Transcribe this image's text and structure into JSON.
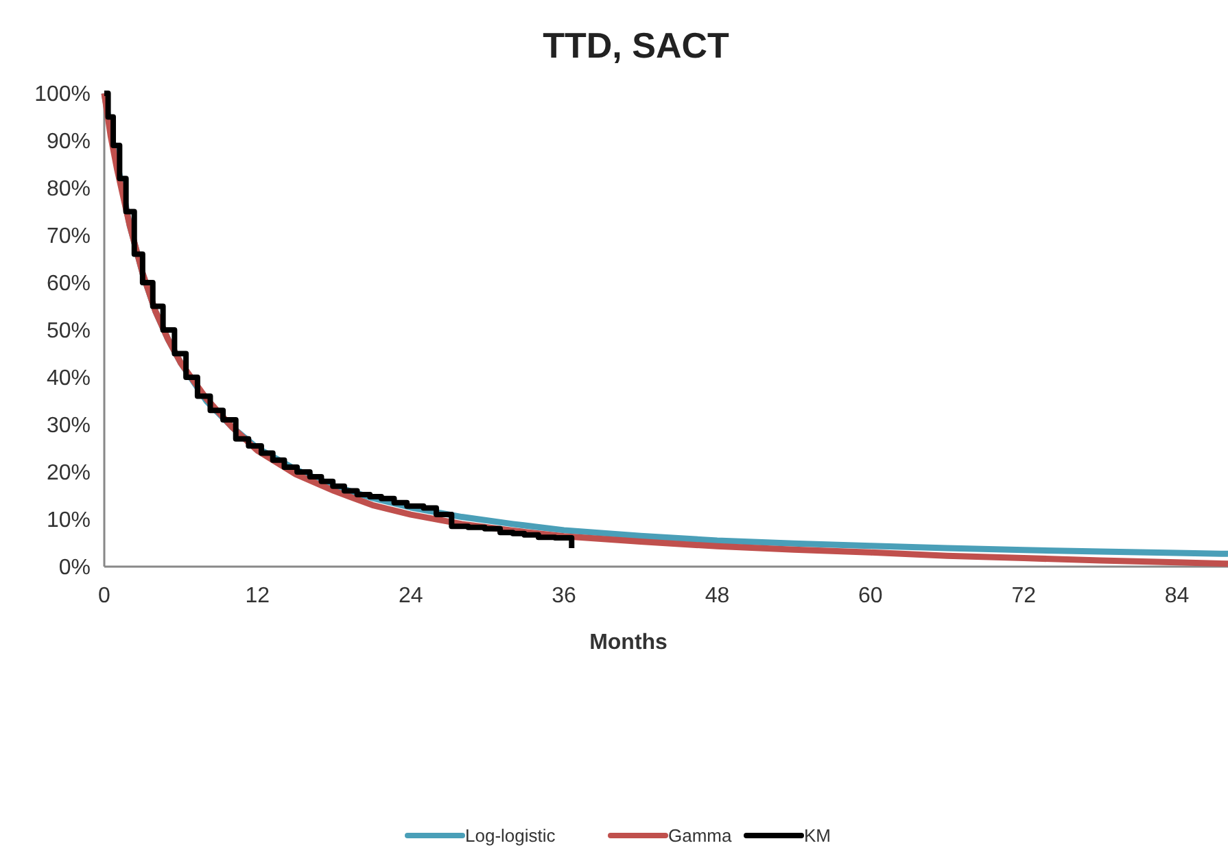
{
  "chart_data": {
    "type": "line",
    "title": "TTD, SACT",
    "xlabel": "Months",
    "xlim": [
      0,
      88
    ],
    "xticks": [
      0,
      12,
      24,
      36,
      48,
      60,
      72,
      84
    ],
    "ylim": [
      0,
      100
    ],
    "yticks": [
      {
        "value": 0,
        "label": "0%"
      },
      {
        "value": 10,
        "label": "10%"
      },
      {
        "value": 20,
        "label": "20%"
      },
      {
        "value": 30,
        "label": "30%"
      },
      {
        "value": 40,
        "label": "40%"
      },
      {
        "value": 50,
        "label": "50%"
      },
      {
        "value": 60,
        "label": "60%"
      },
      {
        "value": 70,
        "label": "70%"
      },
      {
        "value": 80,
        "label": "80%"
      },
      {
        "value": 90,
        "label": "90%"
      },
      {
        "value": 100,
        "label": "100%"
      }
    ],
    "grid": false,
    "legend": "bottom",
    "series": [
      {
        "name": "Log-logistic",
        "color": "#4a9fb8",
        "x": [
          0,
          0.5,
          1,
          2,
          3,
          4,
          5,
          6,
          8,
          10,
          12,
          15,
          18,
          21,
          24,
          28,
          32,
          36,
          42,
          48,
          54,
          60,
          66,
          72,
          78,
          84,
          88
        ],
        "values": [
          100,
          92,
          null,
          72,
          62,
          54,
          48,
          43,
          35,
          29.5,
          25,
          20.5,
          17,
          14.5,
          12.5,
          10.5,
          9,
          7.7,
          6.5,
          5.5,
          4.9,
          4.4,
          3.9,
          3.5,
          3.2,
          2.9,
          2.7
        ]
      },
      {
        "name": "Gamma",
        "color": "#c0504d",
        "x": [
          0,
          0.5,
          1,
          2,
          3,
          4,
          5,
          6,
          8,
          10,
          12,
          15,
          18,
          21,
          24,
          28,
          32,
          36,
          42,
          48,
          54,
          60,
          66,
          72,
          78,
          84,
          88
        ],
        "values": [
          100,
          91,
          84,
          72,
          62,
          54,
          48,
          43,
          35.5,
          29.5,
          24.5,
          19.5,
          16,
          13,
          11,
          9,
          7.6,
          6.4,
          5.3,
          4.3,
          3.6,
          3,
          2.3,
          1.8,
          1.3,
          0.9,
          0.6
        ]
      },
      {
        "name": "KM",
        "color": "#000000",
        "type": "step",
        "x": [
          0,
          0.3,
          0.7,
          1.2,
          1.7,
          2.35,
          3,
          3.8,
          4.6,
          5.5,
          6.4,
          7.3,
          8.3,
          9.3,
          10.3,
          11.3,
          12.3,
          13.2,
          14.1,
          15.1,
          16.1,
          17,
          17.9,
          18.8,
          19.8,
          20.8,
          21.7,
          22.7,
          23.7,
          25,
          26,
          27.2,
          28.5,
          29.8,
          31,
          32,
          32.9,
          34,
          35.3,
          36,
          36.6
        ],
        "values": [
          100,
          95,
          89,
          82,
          75,
          66,
          60,
          55,
          50,
          45,
          40,
          36,
          33,
          31,
          27,
          25.5,
          24,
          22.5,
          21,
          20,
          19,
          18,
          17,
          16,
          15.2,
          14.8,
          14.4,
          13.5,
          12.8,
          12.4,
          11,
          8.5,
          8.3,
          8,
          7.2,
          7,
          6.7,
          6.2,
          6.1,
          6.1,
          3.9
        ]
      }
    ]
  }
}
